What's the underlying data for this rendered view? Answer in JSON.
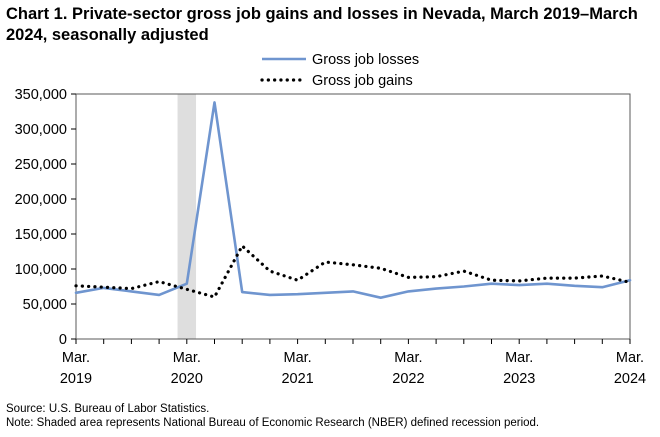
{
  "chart_data": {
    "type": "line",
    "title": "Chart 1. Private-sector gross job gains and losses in Nevada, March 2019–March 2024, seasonally adjusted",
    "xlabel": "",
    "ylabel": "",
    "ylim": [
      0,
      350000
    ],
    "y_ticks": [
      0,
      50000,
      100000,
      150000,
      200000,
      250000,
      300000,
      350000
    ],
    "y_tick_labels": [
      "0",
      "50,000",
      "100,000",
      "150,000",
      "200,000",
      "250,000",
      "300,000",
      "350,000"
    ],
    "x_tick_labels": [
      {
        "month": "Mar.",
        "year": "2019"
      },
      {
        "month": "Mar.",
        "year": "2020"
      },
      {
        "month": "Mar.",
        "year": "2021"
      },
      {
        "month": "Mar.",
        "year": "2022"
      },
      {
        "month": "Mar.",
        "year": "2023"
      },
      {
        "month": "Mar.",
        "year": "2024"
      }
    ],
    "x": [
      "2019-03",
      "2019-06",
      "2019-09",
      "2019-12",
      "2020-03",
      "2020-06",
      "2020-09",
      "2020-12",
      "2021-03",
      "2021-06",
      "2021-09",
      "2021-12",
      "2022-03",
      "2022-06",
      "2022-09",
      "2022-12",
      "2023-03",
      "2023-06",
      "2023-09",
      "2023-12",
      "2024-03"
    ],
    "grid": false,
    "legend_position": "top-center",
    "recession": {
      "start": "2020-02",
      "end": "2020-04"
    },
    "series": [
      {
        "name": "Gross job losses",
        "style": "solid",
        "color": "#6f95cf",
        "values": [
          66000,
          73000,
          68000,
          63000,
          79000,
          338000,
          67000,
          63000,
          64000,
          66000,
          68000,
          59000,
          68000,
          72000,
          75000,
          79000,
          77000,
          79000,
          76000,
          74000,
          84000
        ]
      },
      {
        "name": "Gross job gains",
        "style": "dotted",
        "color": "#000000",
        "values": [
          76000,
          74000,
          72000,
          82000,
          71000,
          60000,
          133000,
          97000,
          84000,
          110000,
          106000,
          101000,
          88000,
          89000,
          97000,
          84000,
          83000,
          87000,
          87000,
          90000,
          81000
        ]
      }
    ]
  },
  "notes": {
    "source": "Source: U.S. Bureau of Labor Statistics.",
    "shading": "Note: Shaded area represents National Bureau of Economic Research (NBER) defined  recession period."
  },
  "colors": {
    "recession_shade": "#dedede",
    "axis": "#000000"
  }
}
